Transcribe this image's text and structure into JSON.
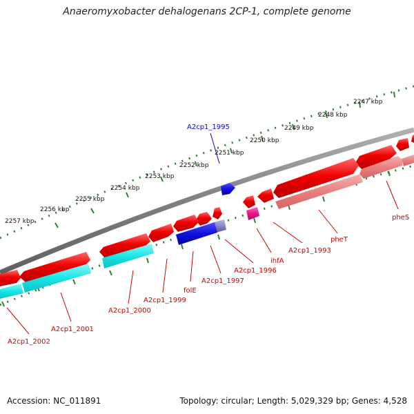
{
  "title": "Anaeromyxobacter dehalogenans 2CP-1, complete genome",
  "footer": {
    "accession": "Accession: NC_011891",
    "summary": "Topology: circular; Length: 5,029,329 bp; Genes: 4,528"
  },
  "colors": {
    "backbone": "#8c8c8c",
    "ticks": "#2e7d32",
    "forward_gene": "#ee0000",
    "reverse_gene": "#e87a7a",
    "blue_gene": "#1010dd",
    "cyan_gene": "#19e6e6",
    "magenta_gene": "#ee1188",
    "label_red": "#cc0000",
    "label_blue": "#0000cc"
  },
  "scale_labels": [
    "2247 kbp",
    "2248 kbp",
    "2249 kbp",
    "2250 kbp",
    "2251 kbp",
    "2252 kbp",
    "2253 kbp",
    "2254 kbp",
    "2255 kbp",
    "2256 kbp",
    "2257 kbp"
  ],
  "gene_labels": [
    {
      "text": "A2cp1_1995",
      "color": "blue"
    },
    {
      "text": "pheS",
      "color": "red"
    },
    {
      "text": "pheT",
      "color": "red"
    },
    {
      "text": "A2cp1_1993",
      "color": "red"
    },
    {
      "text": "ihfA",
      "color": "red"
    },
    {
      "text": "A2cp1_1996",
      "color": "red"
    },
    {
      "text": "A2cp1_1997",
      "color": "red"
    },
    {
      "text": "folE",
      "color": "red"
    },
    {
      "text": "A2cp1_1999",
      "color": "red"
    },
    {
      "text": "A2cp1_2000",
      "color": "red"
    },
    {
      "text": "A2cp1_2001",
      "color": "red"
    },
    {
      "text": "A2cp1_2002",
      "color": "red"
    }
  ]
}
